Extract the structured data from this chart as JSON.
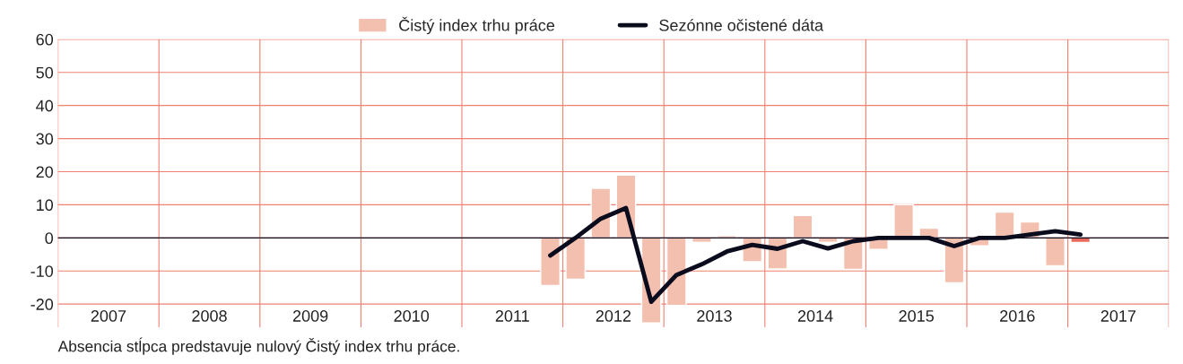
{
  "chart_data": {
    "type": "bar",
    "x": [
      2011.875,
      2012.125,
      2012.375,
      2012.625,
      2012.875,
      2013.125,
      2013.375,
      2013.625,
      2013.875,
      2014.125,
      2014.375,
      2014.625,
      2014.875,
      2015.125,
      2015.375,
      2015.625,
      2015.875,
      2016.125,
      2016.375,
      2016.625,
      2016.875,
      2017.125
    ],
    "series": [
      {
        "name": "Čistý index trhu práce",
        "type": "bar",
        "color": "#f3bfae",
        "colors": [
          "#f3bfae",
          "#f3bfae",
          "#f3bfae",
          "#f3bfae",
          "#f3bfae",
          "#f3bfae",
          "#f3bfae",
          "#f3bfae",
          "#f3bfae",
          "#f3bfae",
          "#f3bfae",
          "#f3bfae",
          "#f3bfae",
          "#f3bfae",
          "#f3bfae",
          "#f3bfae",
          "#f3bfae",
          "#f3bfae",
          "#f3bfae",
          "#f3bfae",
          "#f3bfae",
          "#e8695b"
        ],
        "values": [
          -14.4,
          -12.5,
          15,
          19,
          -25.7,
          -20.4,
          -1.3,
          0.7,
          -7.2,
          -9.4,
          6.8,
          -1.3,
          -9.5,
          -3.5,
          10,
          2.9,
          -13.6,
          -2.4,
          7.8,
          4.8,
          -8.4,
          -1.4
        ]
      },
      {
        "name": "Sezónne očistené dáta",
        "type": "line",
        "color": "#0b0b1e",
        "values": [
          -5.3,
          0,
          5.8,
          9,
          -19.3,
          -11.2,
          -8,
          -4.1,
          -2.1,
          -3.3,
          -1,
          -3.2,
          -1,
          0,
          0,
          0,
          -2.5,
          0,
          0,
          1,
          2,
          1
        ]
      }
    ],
    "xlim": [
      2007,
      2018
    ],
    "xticks": [
      {
        "value": 2007,
        "label": null
      },
      {
        "value": 2007.5,
        "label": "2007"
      },
      {
        "value": 2008,
        "label": null
      },
      {
        "value": 2008.5,
        "label": "2008"
      },
      {
        "value": 2009,
        "label": null
      },
      {
        "value": 2009.5,
        "label": "2009"
      },
      {
        "value": 2010,
        "label": null
      },
      {
        "value": 2010.5,
        "label": "2010"
      },
      {
        "value": 2011,
        "label": null
      },
      {
        "value": 2011.5,
        "label": "2011"
      },
      {
        "value": 2012,
        "label": null
      },
      {
        "value": 2012.5,
        "label": "2012"
      },
      {
        "value": 2013,
        "label": null
      },
      {
        "value": 2013.5,
        "label": "2013"
      },
      {
        "value": 2014,
        "label": null
      },
      {
        "value": 2014.5,
        "label": "2014"
      },
      {
        "value": 2015,
        "label": null
      },
      {
        "value": 2015.5,
        "label": "2015"
      },
      {
        "value": 2016,
        "label": null
      },
      {
        "value": 2016.5,
        "label": "2016"
      },
      {
        "value": 2017,
        "label": null
      },
      {
        "value": 2017.5,
        "label": "2017"
      },
      {
        "value": 2018,
        "label": null
      }
    ],
    "ylim": [
      -27,
      60
    ],
    "yticks": [
      -20,
      -10,
      0,
      10,
      20,
      30,
      40,
      50,
      60
    ],
    "grid": true,
    "ref_lines": [
      {
        "axis": "y",
        "value": 0,
        "color": "#0b0b1e"
      }
    ],
    "legend": "top",
    "marker": "none",
    "line_style": "solid",
    "annotations": [
      "Absencia stĺpca predstavuje nulový Čistý index trhu práce."
    ]
  }
}
